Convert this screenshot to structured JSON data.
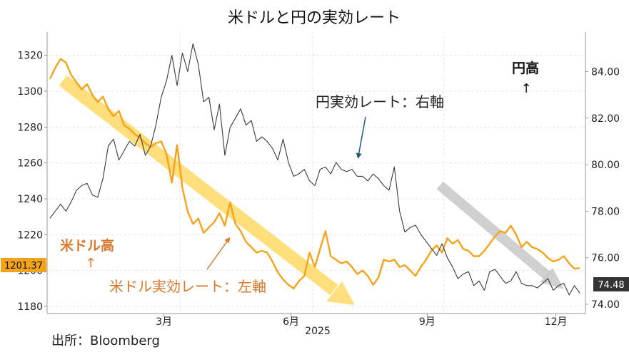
{
  "chart_data": {
    "type": "line",
    "title": "米ドルと円の実効レート",
    "source": "出所：Bloomberg",
    "x_year_label": "2025",
    "x_ticks": [
      "3月",
      "6月",
      "9月",
      "12月"
    ],
    "left_axis": {
      "ticks": [
        1180,
        1200,
        1220,
        1240,
        1260,
        1280,
        1300,
        1320
      ],
      "range": [
        1176,
        1333
      ],
      "last_value_label": "1201.37"
    },
    "right_axis": {
      "ticks": [
        "74.00",
        "76.00",
        "78.00",
        "80.00",
        "82.00",
        "84.00"
      ],
      "range": [
        73.6,
        85.7
      ],
      "last_value_label": "74.48"
    },
    "grid": true,
    "colors": {
      "usd": "#f5a31a",
      "jpy": "#3a3a3a",
      "usd_text": "#e07b1a",
      "usd_arrow": "#ffd966",
      "jpy_arrow": "#c8c8c8",
      "pointer_blue": "#1f5c7a",
      "tag_orange": "#f5a31a",
      "tag_gray": "#333333"
    },
    "annotations": {
      "jpy_series_label": "円実効レート：右軸",
      "usd_series_label": "米ドル実効レート：左軸",
      "usd_strong_label": "米ドル高",
      "usd_strong_arrow": "↑",
      "jpy_strong_label": "円高",
      "jpy_strong_arrow": "↑"
    },
    "series": [
      {
        "axis": "left",
        "x": [
          0,
          0.01,
          0.02,
          0.03,
          0.04,
          0.05,
          0.06,
          0.07,
          0.08,
          0.09,
          0.1,
          0.11,
          0.12,
          0.13,
          0.14,
          0.15,
          0.16,
          0.17,
          0.18,
          0.19,
          0.2,
          0.21,
          0.22,
          0.23,
          0.24,
          0.25,
          0.26,
          0.27,
          0.28,
          0.29,
          0.3,
          0.31,
          0.32,
          0.33,
          0.34,
          0.35,
          0.36,
          0.37,
          0.38,
          0.39,
          0.4,
          0.41,
          0.42,
          0.43,
          0.44,
          0.45,
          0.46,
          0.47,
          0.48,
          0.49,
          0.5,
          0.51,
          0.52,
          0.53,
          0.54,
          0.55,
          0.56,
          0.57,
          0.58,
          0.59,
          0.6,
          0.61,
          0.62,
          0.63,
          0.64,
          0.65,
          0.66,
          0.67,
          0.68,
          0.69,
          0.7,
          0.71,
          0.72,
          0.73,
          0.74,
          0.75,
          0.76,
          0.77,
          0.78,
          0.79,
          0.8,
          0.81,
          0.82,
          0.83,
          0.84,
          0.85,
          0.86,
          0.87,
          0.88,
          0.89,
          0.9,
          0.91,
          0.92,
          0.93,
          0.94,
          0.95,
          0.96,
          0.97,
          0.98,
          0.99,
          1.0
        ],
        "values": [
          1307,
          1313,
          1318,
          1316,
          1309,
          1305,
          1301,
          1304,
          1298,
          1294,
          1297,
          1290,
          1286,
          1289,
          1281,
          1279,
          1276,
          1274,
          1271,
          1269,
          1271,
          1272,
          1265,
          1249,
          1270,
          1246,
          1233,
          1226,
          1229,
          1221,
          1224,
          1227,
          1232,
          1225,
          1238,
          1226,
          1222,
          1216,
          1213,
          1210,
          1211,
          1210,
          1205,
          1199,
          1195,
          1192,
          1190,
          1194,
          1197,
          1210,
          1202,
          1212,
          1222,
          1208,
          1206,
          1204,
          1205,
          1202,
          1198,
          1200,
          1197,
          1192,
          1196,
          1206,
          1205,
          1206,
          1202,
          1203,
          1200,
          1197,
          1202,
          1206,
          1211,
          1214,
          1210,
          1218,
          1215,
          1217,
          1212,
          1211,
          1208,
          1208,
          1211,
          1215,
          1219,
          1222,
          1221,
          1225,
          1220,
          1213,
          1216,
          1213,
          1212,
          1210,
          1207,
          1205,
          1206,
          1208,
          1204,
          1201,
          1201.37
        ]
      },
      {
        "axis": "right",
        "x": [
          0,
          0.01,
          0.02,
          0.03,
          0.04,
          0.05,
          0.06,
          0.07,
          0.08,
          0.09,
          0.1,
          0.11,
          0.12,
          0.13,
          0.14,
          0.15,
          0.16,
          0.17,
          0.18,
          0.19,
          0.2,
          0.21,
          0.22,
          0.23,
          0.24,
          0.25,
          0.26,
          0.27,
          0.28,
          0.29,
          0.3,
          0.31,
          0.32,
          0.33,
          0.34,
          0.35,
          0.36,
          0.37,
          0.38,
          0.39,
          0.4,
          0.41,
          0.42,
          0.43,
          0.44,
          0.45,
          0.46,
          0.47,
          0.48,
          0.49,
          0.5,
          0.51,
          0.52,
          0.53,
          0.54,
          0.55,
          0.56,
          0.57,
          0.58,
          0.59,
          0.6,
          0.61,
          0.62,
          0.63,
          0.64,
          0.65,
          0.66,
          0.67,
          0.68,
          0.69,
          0.7,
          0.71,
          0.72,
          0.73,
          0.74,
          0.75,
          0.76,
          0.77,
          0.78,
          0.79,
          0.8,
          0.81,
          0.82,
          0.83,
          0.84,
          0.85,
          0.86,
          0.87,
          0.88,
          0.89,
          0.9,
          0.91,
          0.92,
          0.93,
          0.94,
          0.95,
          0.96,
          0.97,
          0.98,
          0.99,
          1.0
        ],
        "values": [
          77.7,
          78.0,
          78.3,
          78.0,
          78.4,
          78.9,
          79.1,
          79.2,
          78.7,
          78.6,
          79.4,
          80.8,
          81.1,
          80.2,
          80.6,
          81.0,
          80.8,
          81.3,
          80.4,
          80.8,
          81.7,
          82.9,
          83.6,
          84.7,
          83.4,
          84.8,
          84.0,
          85.2,
          84.3,
          82.7,
          82.9,
          81.5,
          82.6,
          80.4,
          81.6,
          82.0,
          82.4,
          81.7,
          81.9,
          81.0,
          81.2,
          81.0,
          80.7,
          80.2,
          81.1,
          80.1,
          79.5,
          79.6,
          79.8,
          79.3,
          79.1,
          79.8,
          79.9,
          79.6,
          80.1,
          79.8,
          79.7,
          79.8,
          79.5,
          79.5,
          79.3,
          79.6,
          79.4,
          79.1,
          78.9,
          79.9,
          78.0,
          77.1,
          77.3,
          77.4,
          77.0,
          76.7,
          76.4,
          76.1,
          76.6,
          76.0,
          75.6,
          75.1,
          75.3,
          75.4,
          74.8,
          75.0,
          74.6,
          75.4,
          75.5,
          75.2,
          74.9,
          75.0,
          75.4,
          74.9,
          74.8,
          74.8,
          74.7,
          74.9,
          75.1,
          74.6,
          74.8,
          74.9,
          74.4,
          74.8,
          74.48
        ]
      }
    ]
  }
}
